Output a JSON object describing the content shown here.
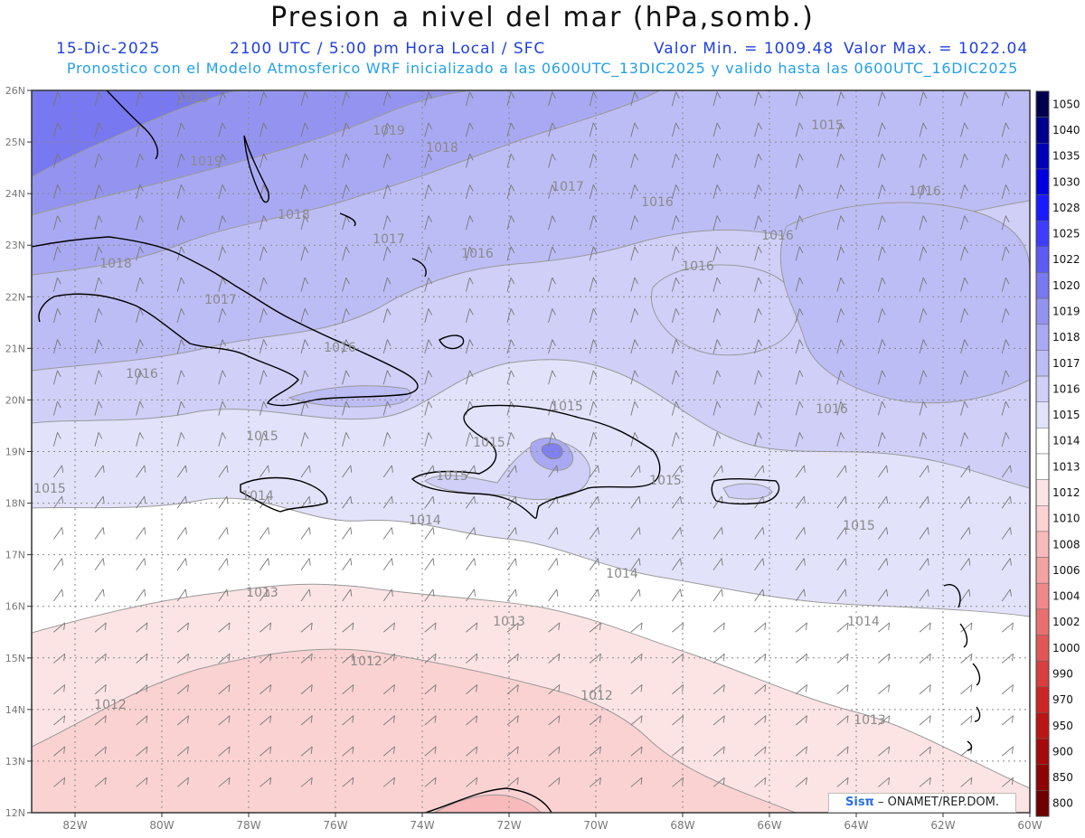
{
  "header": {
    "title": "Presion a nivel del mar (hPa,somb.)",
    "date": "15-Dic-2025",
    "time": "2100 UTC / 5:00 pm Hora Local / SFC",
    "min_label": "Valor Min. = 1009.48",
    "max_label": "Valor Max. = 1022.04",
    "model_info": "Pronostico con el Modelo Atmosferico WRF inicializado a las 0600UTC_13DIC2025 y valido hasta las  0600UTC_16DIC2025"
  },
  "map": {
    "lon_range": [
      -83,
      -60
    ],
    "lat_range": [
      12,
      26
    ],
    "lon_ticks": [
      "82W",
      "80W",
      "78W",
      "76W",
      "74W",
      "72W",
      "70W",
      "68W",
      "66W",
      "64W",
      "62W",
      "60W"
    ],
    "lat_ticks": [
      "12N",
      "13N",
      "14N",
      "15N",
      "16N",
      "17N",
      "18N",
      "19N",
      "20N",
      "21N",
      "22N",
      "23N",
      "24N",
      "25N",
      "26N"
    ],
    "contour_labels": [
      "1020",
      "1019",
      "1019",
      "1018",
      "1018",
      "1018",
      "1017",
      "1017",
      "1017",
      "1016",
      "1016",
      "1016",
      "1016",
      "1016",
      "1016",
      "1016",
      "1016",
      "1015",
      "1015",
      "1015",
      "1015",
      "1015",
      "1015",
      "1015",
      "1015",
      "1014",
      "1014",
      "1014",
      "1014",
      "1013",
      "1013",
      "1013",
      "1012",
      "1012",
      "1012"
    ]
  },
  "colorbar": {
    "labels": [
      "1050",
      "1040",
      "1035",
      "1030",
      "1028",
      "1025",
      "1022",
      "1020",
      "1019",
      "1018",
      "1017",
      "1016",
      "1015",
      "1014",
      "1013",
      "1012",
      "1010",
      "1008",
      "1006",
      "1004",
      "1002",
      "1000",
      "990",
      "970",
      "950",
      "900",
      "850",
      "800"
    ],
    "colors": [
      "#00004d",
      "#00008e",
      "#0000b8",
      "#0000e0",
      "#1a1aff",
      "#3d3dff",
      "#5c5cf5",
      "#7878f0",
      "#9494f0",
      "#a9a9f3",
      "#bdbdf6",
      "#cfcff8",
      "#e2e2fb",
      "#ffffff",
      "#ffffff",
      "#fde4e4",
      "#fbd2d2",
      "#f8baba",
      "#f5a2a2",
      "#f08a8a",
      "#ea7070",
      "#e25656",
      "#d83e3e",
      "#cc2626",
      "#bb1414",
      "#a50a0a",
      "#8c0404",
      "#700000"
    ]
  },
  "credit": {
    "brand": "Sisπ",
    "org": " – ONAMET/REP.DOM."
  }
}
